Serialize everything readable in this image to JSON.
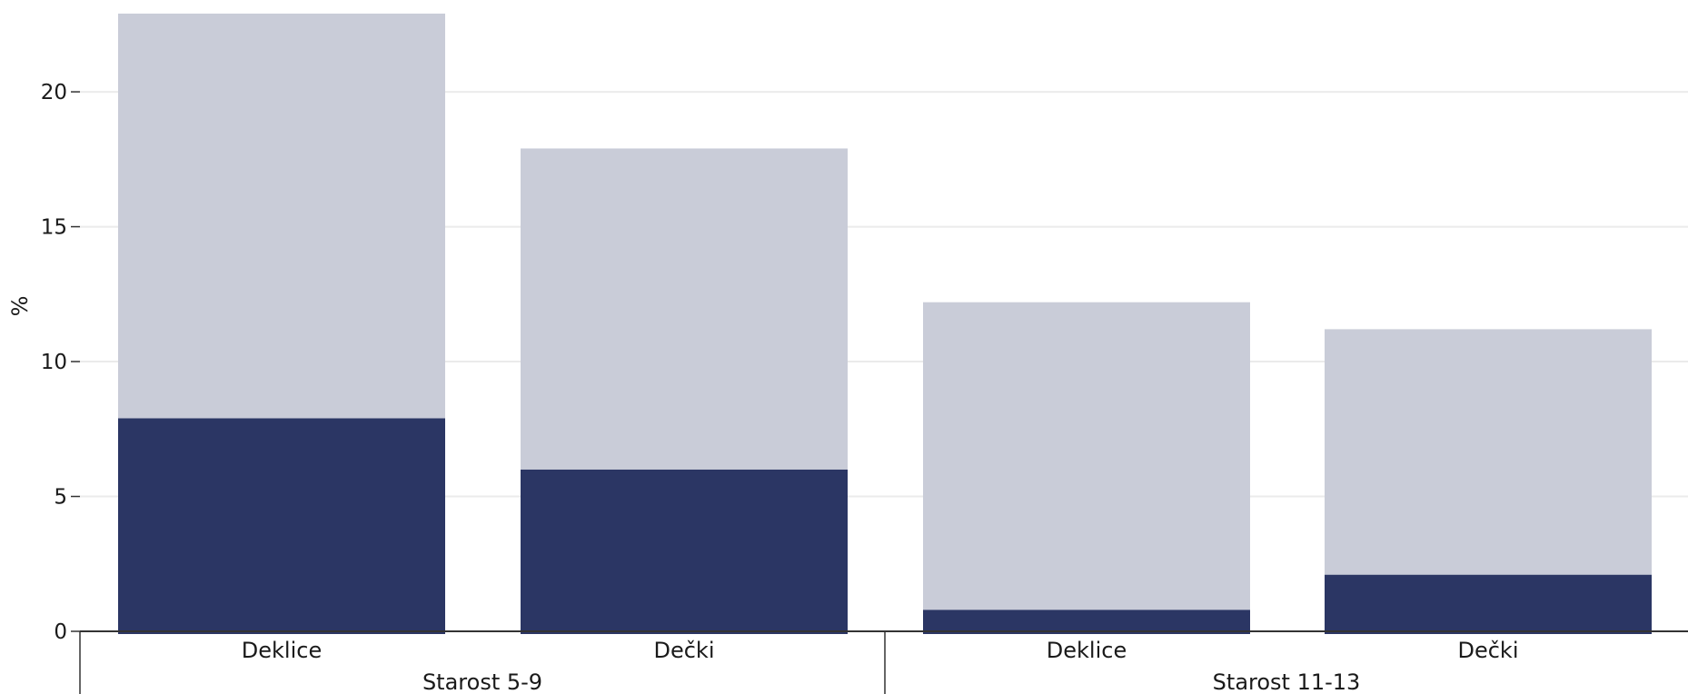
{
  "chart_data": {
    "type": "bar",
    "stacked": true,
    "ylabel": "%",
    "ylim": [
      0,
      23
    ],
    "yticks": [
      0,
      5,
      10,
      15,
      20
    ],
    "grid": true,
    "groups": [
      {
        "label": "Starost 5-9",
        "categories": [
          "Deklice",
          "Dečki"
        ]
      },
      {
        "label": "Starost 11-13",
        "categories": [
          "Deklice",
          "Dečki"
        ]
      }
    ],
    "categories": [
      "Deklice",
      "Dečki",
      "Deklice",
      "Dečki"
    ],
    "series": [
      {
        "values": [
          7.9,
          6.0,
          0.8,
          2.1
        ],
        "color": "#2b3664"
      },
      {
        "values": [
          15.0,
          11.9,
          11.4,
          9.1
        ],
        "color": "#c9ccd8"
      }
    ],
    "totals": [
      22.9,
      17.9,
      12.2,
      11.2
    ]
  },
  "colors": {
    "grid": "#ebebeb",
    "axis": "#333333"
  }
}
